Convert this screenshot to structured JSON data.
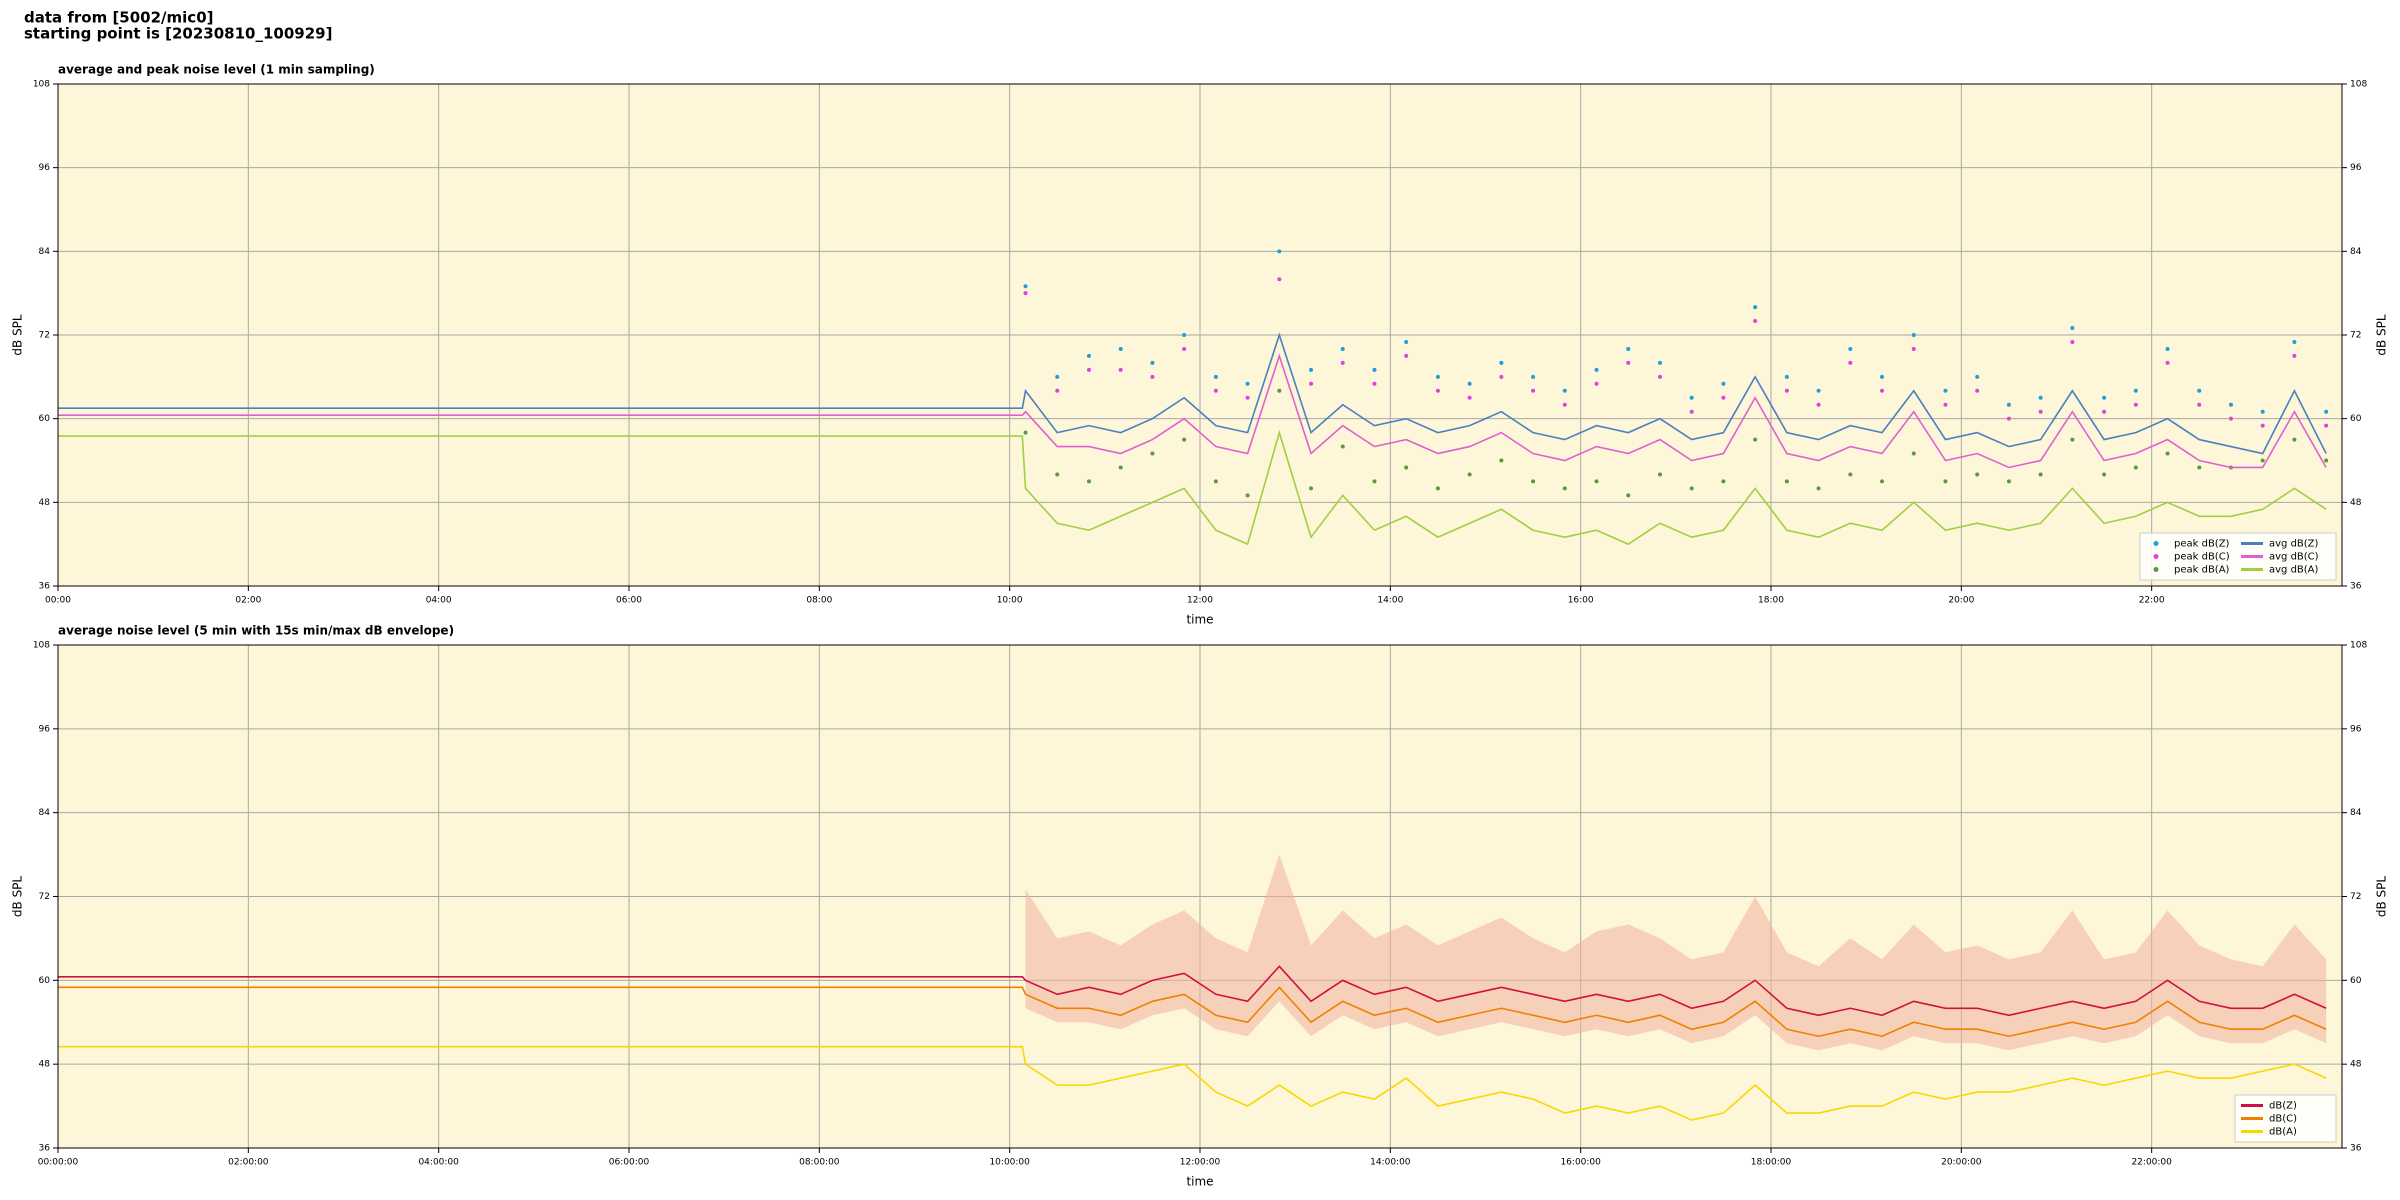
{
  "header": {
    "source": "data from [5002/mic0]",
    "start": "starting point is [20230810_100929]"
  },
  "chart_data": [
    {
      "type": "line",
      "title": "average and peak noise level (1 min sampling)",
      "x_label": "time",
      "y_label": "dB SPL",
      "xlim": [
        "00:00",
        "24:00"
      ],
      "ylim": [
        36,
        108
      ],
      "yticks": [
        36,
        48,
        60,
        72,
        84,
        96,
        108
      ],
      "xticks": [
        "00:00",
        "02:00",
        "04:00",
        "06:00",
        "08:00",
        "10:00",
        "12:00",
        "14:00",
        "16:00",
        "18:00",
        "20:00",
        "22:00"
      ],
      "grid": true,
      "legend": "lower right",
      "legend_columns": 2,
      "background": "#fdf6d8",
      "x": [
        "00:00",
        "10:08",
        "10:10",
        "10:30",
        "10:50",
        "11:10",
        "11:30",
        "11:50",
        "12:10",
        "12:30",
        "12:50",
        "13:10",
        "13:30",
        "13:50",
        "14:10",
        "14:30",
        "14:50",
        "15:10",
        "15:30",
        "15:50",
        "16:10",
        "16:30",
        "16:50",
        "17:10",
        "17:30",
        "17:50",
        "18:10",
        "18:30",
        "18:50",
        "19:10",
        "19:30",
        "19:50",
        "20:10",
        "20:30",
        "20:50",
        "21:10",
        "21:30",
        "21:50",
        "22:10",
        "22:30",
        "22:50",
        "23:10",
        "23:30",
        "23:50"
      ],
      "series": [
        {
          "name": "peak dB(Z)",
          "mark": "dot",
          "color": "#1f9fd8",
          "values": [
            null,
            null,
            79,
            66,
            69,
            70,
            68,
            72,
            66,
            65,
            84,
            67,
            70,
            67,
            71,
            66,
            65,
            68,
            66,
            64,
            67,
            70,
            68,
            63,
            65,
            76,
            66,
            64,
            70,
            66,
            72,
            64,
            66,
            62,
            63,
            73,
            63,
            64,
            70,
            64,
            62,
            61,
            71,
            61
          ]
        },
        {
          "name": "peak dB(C)",
          "mark": "dot",
          "color": "#e040e0",
          "values": [
            null,
            null,
            78,
            64,
            67,
            67,
            66,
            70,
            64,
            63,
            80,
            65,
            68,
            65,
            69,
            64,
            63,
            66,
            64,
            62,
            65,
            68,
            66,
            61,
            63,
            74,
            64,
            62,
            68,
            64,
            70,
            62,
            64,
            60,
            61,
            71,
            61,
            62,
            68,
            62,
            60,
            59,
            69,
            59
          ]
        },
        {
          "name": "peak dB(A)",
          "mark": "dot",
          "color": "#5a9a3a",
          "values": [
            null,
            null,
            58,
            52,
            51,
            53,
            55,
            57,
            51,
            49,
            64,
            50,
            56,
            51,
            53,
            50,
            52,
            54,
            51,
            50,
            51,
            49,
            52,
            50,
            51,
            57,
            51,
            50,
            52,
            51,
            55,
            51,
            52,
            51,
            52,
            57,
            52,
            53,
            55,
            53,
            53,
            54,
            57,
            54
          ]
        },
        {
          "name": "avg dB(Z)",
          "mark": "line",
          "color": "#4a80c0",
          "values": [
            61.5,
            61.5,
            64,
            58,
            59,
            58,
            60,
            63,
            59,
            58,
            72,
            58,
            62,
            59,
            60,
            58,
            59,
            61,
            58,
            57,
            59,
            58,
            60,
            57,
            58,
            66,
            58,
            57,
            59,
            58,
            64,
            57,
            58,
            56,
            57,
            64,
            57,
            58,
            60,
            57,
            56,
            55,
            64,
            55
          ]
        },
        {
          "name": "avg dB(C)",
          "mark": "line",
          "color": "#e060d0",
          "values": [
            60.5,
            60.5,
            61,
            56,
            56,
            55,
            57,
            60,
            56,
            55,
            69,
            55,
            59,
            56,
            57,
            55,
            56,
            58,
            55,
            54,
            56,
            55,
            57,
            54,
            55,
            63,
            55,
            54,
            56,
            55,
            61,
            54,
            55,
            53,
            54,
            61,
            54,
            55,
            57,
            54,
            53,
            53,
            61,
            53
          ]
        },
        {
          "name": "avg dB(A)",
          "mark": "line",
          "color": "#a0d040",
          "values": [
            57.5,
            57.5,
            50,
            45,
            44,
            46,
            48,
            50,
            44,
            42,
            58,
            43,
            49,
            44,
            46,
            43,
            45,
            47,
            44,
            43,
            44,
            42,
            45,
            43,
            44,
            50,
            44,
            43,
            45,
            44,
            48,
            44,
            45,
            44,
            45,
            50,
            45,
            46,
            48,
            46,
            46,
            47,
            50,
            47
          ]
        }
      ]
    },
    {
      "type": "line",
      "title": "average noise level (5 min with 15s min/max dB envelope)",
      "x_label": "time",
      "y_label": "dB SPL",
      "xlim": [
        "00:00",
        "24:00"
      ],
      "ylim": [
        36,
        108
      ],
      "yticks": [
        36,
        48,
        60,
        72,
        84,
        96,
        108
      ],
      "xticks": [
        "00:00:00",
        "02:00:00",
        "04:00:00",
        "06:00:00",
        "08:00:00",
        "10:00:00",
        "12:00:00",
        "14:00:00",
        "16:00:00",
        "18:00:00",
        "20:00:00",
        "22:00:00"
      ],
      "grid": true,
      "legend": "lower right",
      "legend_columns": 1,
      "background": "#fdf6d8",
      "x": [
        "00:00",
        "10:08",
        "10:10",
        "10:30",
        "10:50",
        "11:10",
        "11:30",
        "11:50",
        "12:10",
        "12:30",
        "12:50",
        "13:10",
        "13:30",
        "13:50",
        "14:10",
        "14:30",
        "14:50",
        "15:10",
        "15:30",
        "15:50",
        "16:10",
        "16:30",
        "16:50",
        "17:10",
        "17:30",
        "17:50",
        "18:10",
        "18:30",
        "18:50",
        "19:10",
        "19:30",
        "19:50",
        "20:10",
        "20:30",
        "20:50",
        "21:10",
        "21:30",
        "21:50",
        "22:10",
        "22:30",
        "22:50",
        "23:10",
        "23:30",
        "23:50"
      ],
      "envelope": {
        "color": "#f2b0a0",
        "upper": [
          null,
          null,
          73,
          66,
          67,
          65,
          68,
          70,
          66,
          64,
          78,
          65,
          70,
          66,
          68,
          65,
          67,
          69,
          66,
          64,
          67,
          68,
          66,
          63,
          64,
          72,
          64,
          62,
          66,
          63,
          68,
          64,
          65,
          63,
          64,
          70,
          63,
          64,
          70,
          65,
          63,
          62,
          68,
          63
        ],
        "lower": [
          null,
          null,
          56,
          54,
          54,
          53,
          55,
          56,
          53,
          52,
          57,
          52,
          55,
          53,
          54,
          52,
          53,
          54,
          53,
          52,
          53,
          52,
          53,
          51,
          52,
          55,
          51,
          50,
          51,
          50,
          52,
          51,
          51,
          50,
          51,
          52,
          51,
          52,
          55,
          52,
          51,
          51,
          53,
          51
        ]
      },
      "series": [
        {
          "name": "dB(Z)",
          "mark": "line",
          "color": "#d01040",
          "values": [
            60.5,
            60.5,
            60,
            58,
            59,
            58,
            60,
            61,
            58,
            57,
            62,
            57,
            60,
            58,
            59,
            57,
            58,
            59,
            58,
            57,
            58,
            57,
            58,
            56,
            57,
            60,
            56,
            55,
            56,
            55,
            57,
            56,
            56,
            55,
            56,
            57,
            56,
            57,
            60,
            57,
            56,
            56,
            58,
            56
          ]
        },
        {
          "name": "dB(C)",
          "mark": "line",
          "color": "#f08000",
          "values": [
            59,
            59,
            58,
            56,
            56,
            55,
            57,
            58,
            55,
            54,
            59,
            54,
            57,
            55,
            56,
            54,
            55,
            56,
            55,
            54,
            55,
            54,
            55,
            53,
            54,
            57,
            53,
            52,
            53,
            52,
            54,
            53,
            53,
            52,
            53,
            54,
            53,
            54,
            57,
            54,
            53,
            53,
            55,
            53
          ]
        },
        {
          "name": "dB(A)",
          "mark": "line",
          "color": "#f8d800",
          "values": [
            50.5,
            50.5,
            48,
            45,
            45,
            46,
            47,
            48,
            44,
            42,
            45,
            42,
            44,
            43,
            46,
            42,
            43,
            44,
            43,
            41,
            42,
            41,
            42,
            40,
            41,
            45,
            41,
            41,
            42,
            42,
            44,
            43,
            44,
            44,
            45,
            46,
            45,
            46,
            47,
            46,
            46,
            47,
            48,
            46
          ]
        }
      ]
    }
  ]
}
